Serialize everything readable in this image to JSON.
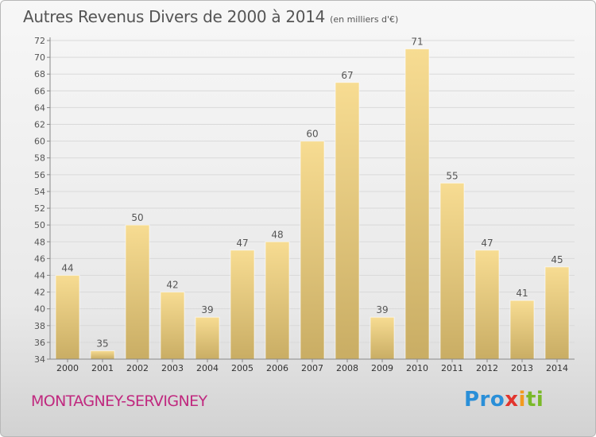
{
  "header": {
    "title": "Autres Revenus Divers de 2000 à 2014",
    "subtitle": "(en milliers d'€)"
  },
  "footer": {
    "commune": "MONTAGNEY-SERVIGNEY",
    "brand_parts": [
      "Pro",
      "x",
      "i",
      "ti"
    ]
  },
  "colors": {
    "bar_light": "#f7dc92",
    "bar_dark": "#c9ad64",
    "axis": "#888888",
    "grid": "#d9d9d9",
    "text": "#555555",
    "commune": "#c0297f"
  },
  "chart_data": {
    "type": "bar",
    "title": "Autres Revenus Divers de 2000 à 2014",
    "subtitle": "(en milliers d'€)",
    "xlabel": "",
    "ylabel": "",
    "categories": [
      "2000",
      "2001",
      "2002",
      "2003",
      "2004",
      "2005",
      "2006",
      "2007",
      "2008",
      "2009",
      "2010",
      "2011",
      "2012",
      "2013",
      "2014"
    ],
    "values": [
      44,
      35,
      50,
      42,
      39,
      47,
      48,
      60,
      67,
      39,
      71,
      55,
      47,
      41,
      45
    ],
    "ylim": [
      34,
      72
    ],
    "ytick_step": 2,
    "grid": true,
    "legend": "none",
    "data_labels": true
  }
}
